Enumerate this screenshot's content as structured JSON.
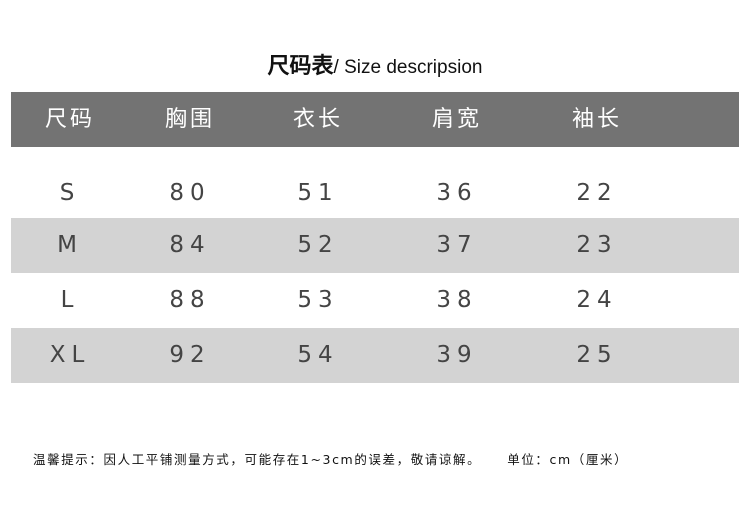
{
  "title": {
    "zh": "尺码表",
    "en": "/ Size descripsion"
  },
  "table": {
    "headers": [
      "尺码",
      "胸围",
      "衣长",
      "肩宽",
      "袖长"
    ],
    "rows": [
      [
        "S",
        "80",
        "51",
        "36",
        "22"
      ],
      [
        "M",
        "84",
        "52",
        "37",
        "23"
      ],
      [
        "L",
        "88",
        "53",
        "38",
        "24"
      ],
      [
        "XL",
        "92",
        "54",
        "39",
        "25"
      ]
    ]
  },
  "footer": {
    "note": "温馨提示：因人工平铺测量方式，可能存在1~3cm的误差，敬请谅解。",
    "unit": "单位：cm（厘米）"
  },
  "colors": {
    "header_bg": "#737373",
    "shaded_row": "#d3d3d3"
  }
}
